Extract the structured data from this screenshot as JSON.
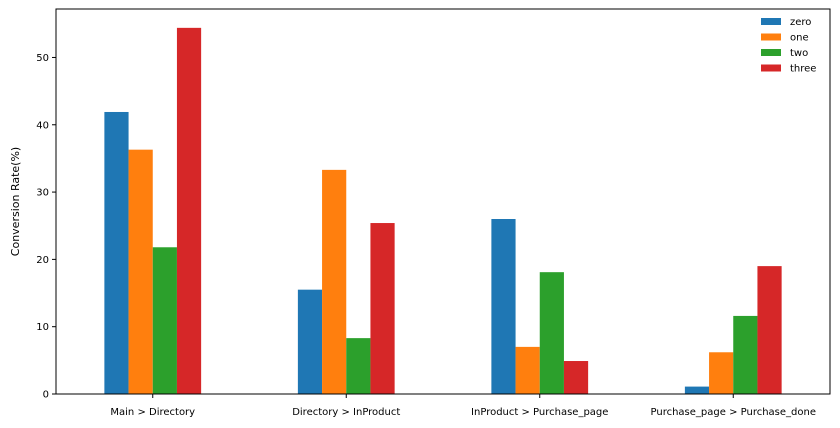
{
  "chart_data": {
    "type": "bar",
    "title": "",
    "xlabel": "",
    "ylabel": "Conversion Rate(%)",
    "categories": [
      "Main > Directory",
      "Directory > InProduct",
      "InProduct > Purchase_page",
      "Purchase_page > Purchase_done"
    ],
    "series": [
      {
        "name": "zero",
        "color": "#1f77b4",
        "values": [
          41.9,
          15.5,
          26.0,
          1.1
        ]
      },
      {
        "name": "one",
        "color": "#ff7f0e",
        "values": [
          36.3,
          33.3,
          7.0,
          6.2
        ]
      },
      {
        "name": "two",
        "color": "#2ca02c",
        "values": [
          21.8,
          8.3,
          18.1,
          11.6
        ]
      },
      {
        "name": "three",
        "color": "#d62728",
        "values": [
          54.4,
          25.4,
          4.9,
          19.0
        ]
      }
    ],
    "ylim": [
      0,
      57.2
    ],
    "yticks": [
      0,
      10,
      20,
      30,
      40,
      50
    ],
    "grid": false,
    "legend_position": "top-right"
  }
}
